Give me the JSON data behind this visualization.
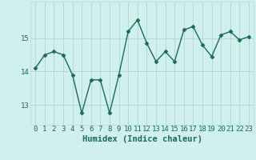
{
  "x": [
    0,
    1,
    2,
    3,
    4,
    5,
    6,
    7,
    8,
    9,
    10,
    11,
    12,
    13,
    14,
    15,
    16,
    17,
    18,
    19,
    20,
    21,
    22,
    23
  ],
  "y": [
    14.1,
    14.5,
    14.6,
    14.5,
    13.9,
    12.75,
    13.75,
    13.75,
    12.75,
    13.9,
    15.2,
    15.55,
    14.85,
    14.3,
    14.6,
    14.3,
    15.25,
    15.35,
    14.8,
    14.45,
    15.1,
    15.2,
    14.95,
    15.05
  ],
  "line_color": "#1a6b5a",
  "marker": "D",
  "marker_size": 2.5,
  "linewidth": 1.0,
  "bg_color": "#cff0ec",
  "grid_color": "#b8d8d4",
  "xlabel": "Humidex (Indice chaleur)",
  "xlabel_fontsize": 7.5,
  "yticks": [
    13,
    14,
    15
  ],
  "xticks": [
    0,
    1,
    2,
    3,
    4,
    5,
    6,
    7,
    8,
    9,
    10,
    11,
    12,
    13,
    14,
    15,
    16,
    17,
    18,
    19,
    20,
    21,
    22,
    23
  ],
  "xlim": [
    -0.5,
    23.5
  ],
  "ylim": [
    12.4,
    16.1
  ],
  "tick_fontsize": 6.5,
  "tick_color": "#1a6b5a"
}
